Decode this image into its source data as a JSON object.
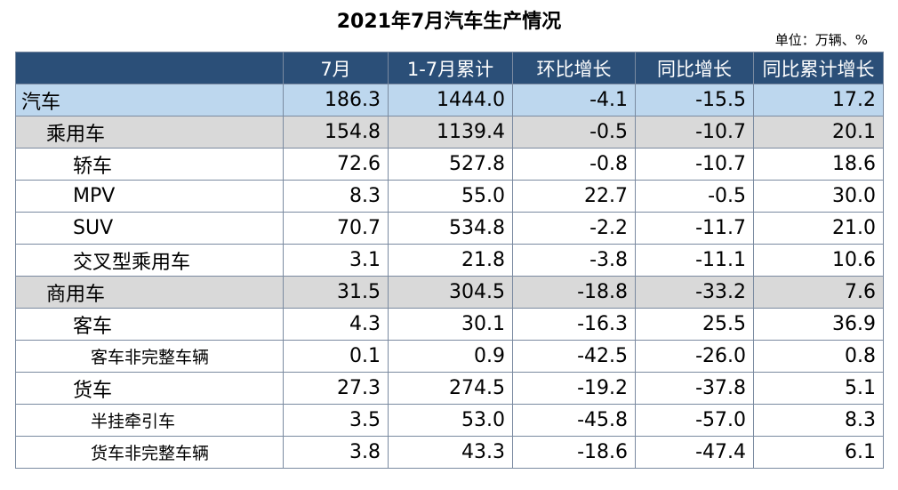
{
  "title": "2021年7月汽车生产情况",
  "unit": "单位：万辆、%",
  "columns": [
    "",
    "7月",
    "1-7月累计",
    "环比增长",
    "同比增长",
    "同比累计增长"
  ],
  "rows": [
    {
      "name": "汽车",
      "level": "l0",
      "style": "total",
      "values": [
        "186.3",
        "1444.0",
        "-4.1",
        "-15.5",
        "17.2"
      ]
    },
    {
      "name": "乘用车",
      "level": "l1",
      "style": "sub",
      "values": [
        "154.8",
        "1139.4",
        "-0.5",
        "-10.7",
        "20.1"
      ]
    },
    {
      "name": "轿车",
      "level": "l2",
      "style": "plain",
      "values": [
        "72.6",
        "527.8",
        "-0.8",
        "-10.7",
        "18.6"
      ]
    },
    {
      "name": "MPV",
      "level": "l2",
      "style": "plain",
      "values": [
        "8.3",
        "55.0",
        "22.7",
        "-0.5",
        "30.0"
      ]
    },
    {
      "name": "SUV",
      "level": "l2",
      "style": "plain",
      "values": [
        "70.7",
        "534.8",
        "-2.2",
        "-11.7",
        "21.0"
      ]
    },
    {
      "name": "交叉型乘用车",
      "level": "l2",
      "style": "plain",
      "values": [
        "3.1",
        "21.8",
        "-3.8",
        "-11.1",
        "10.6"
      ]
    },
    {
      "name": "商用车",
      "level": "l1",
      "style": "sub",
      "values": [
        "31.5",
        "304.5",
        "-18.8",
        "-33.2",
        "7.6"
      ]
    },
    {
      "name": "客车",
      "level": "l2",
      "style": "plain",
      "values": [
        "4.3",
        "30.1",
        "-16.3",
        "25.5",
        "36.9"
      ]
    },
    {
      "name": "客车非完整车辆",
      "level": "l3",
      "style": "plain",
      "values": [
        "0.1",
        "0.9",
        "-42.5",
        "-26.0",
        "0.8"
      ]
    },
    {
      "name": "货车",
      "level": "l2",
      "style": "plain",
      "values": [
        "27.3",
        "274.5",
        "-19.2",
        "-37.8",
        "5.1"
      ]
    },
    {
      "name": "半挂牵引车",
      "level": "l3",
      "style": "plain",
      "values": [
        "3.5",
        "53.0",
        "-45.8",
        "-57.0",
        "8.3"
      ]
    },
    {
      "name": "货车非完整车辆",
      "level": "l3",
      "style": "plain",
      "values": [
        "3.8",
        "43.3",
        "-18.6",
        "-47.4",
        "6.1"
      ]
    }
  ]
}
